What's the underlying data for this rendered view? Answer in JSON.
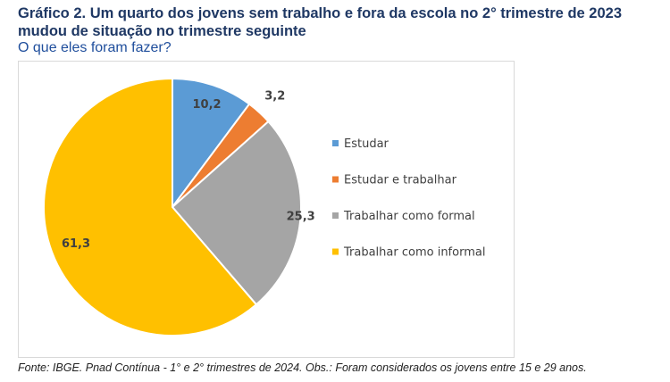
{
  "title": "Gráfico 2. Um quarto dos jovens sem trabalho e fora da escola no 2° trimestre de 2023 mudou de situação no trimestre seguinte",
  "subtitle": "O que eles foram fazer?",
  "source": "Fonte: IBGE. Pnad Contínua - 1° e 2° trimestres de 2024. Obs.: Foram considerados os jovens entre 15 e 29 anos.",
  "chart_data": {
    "type": "pie",
    "title": "O que eles foram fazer?",
    "legend_position": "right",
    "slices": [
      {
        "label": "Estudar",
        "value": 10.2,
        "display": "10,2",
        "color": "#5b9bd5"
      },
      {
        "label": "Estudar e trabalhar",
        "value": 3.2,
        "display": "3,2",
        "color": "#ed7d31"
      },
      {
        "label": "Trabalhar como formal",
        "value": 25.3,
        "display": "25,3",
        "color": "#a5a5a5"
      },
      {
        "label": "Trabalhar como informal",
        "value": 61.3,
        "display": "61,3",
        "color": "#ffc000"
      }
    ]
  }
}
